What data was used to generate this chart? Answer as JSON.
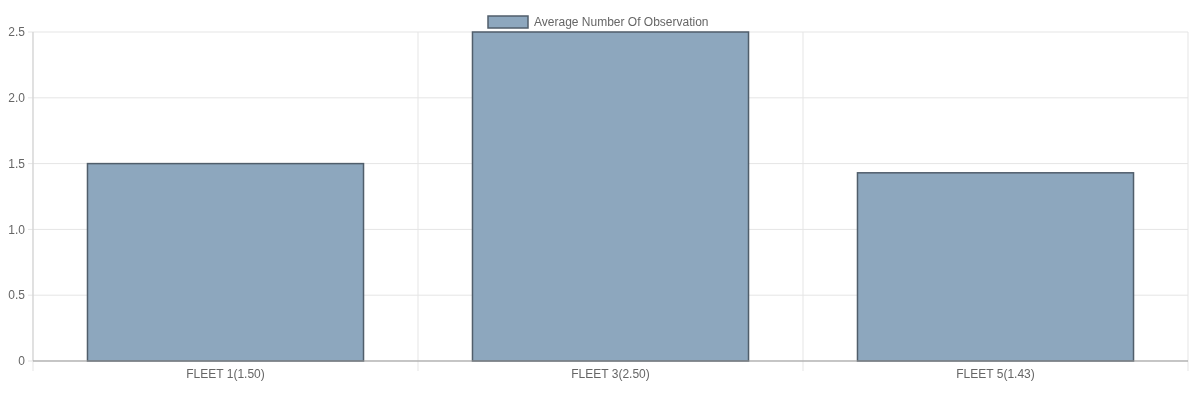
{
  "chart_data": {
    "type": "bar",
    "categories": [
      "FLEET 1(1.50)",
      "FLEET 3(2.50)",
      "FLEET 5(1.43)"
    ],
    "series": [
      {
        "name": "Average Number Of Observation",
        "color": "#8da7be",
        "values": [
          1.5,
          2.5,
          1.43
        ]
      }
    ],
    "ylim": [
      0,
      2.5
    ],
    "yticks": [
      {
        "value": 0,
        "label": "0"
      },
      {
        "value": 0.5,
        "label": "0.5"
      },
      {
        "value": 1,
        "label": "1.0"
      },
      {
        "value": 1.5,
        "label": "1.5"
      },
      {
        "value": 2,
        "label": "2.0"
      },
      {
        "value": 2.5,
        "label": "2.5"
      }
    ],
    "grid": true,
    "legend": "top"
  }
}
